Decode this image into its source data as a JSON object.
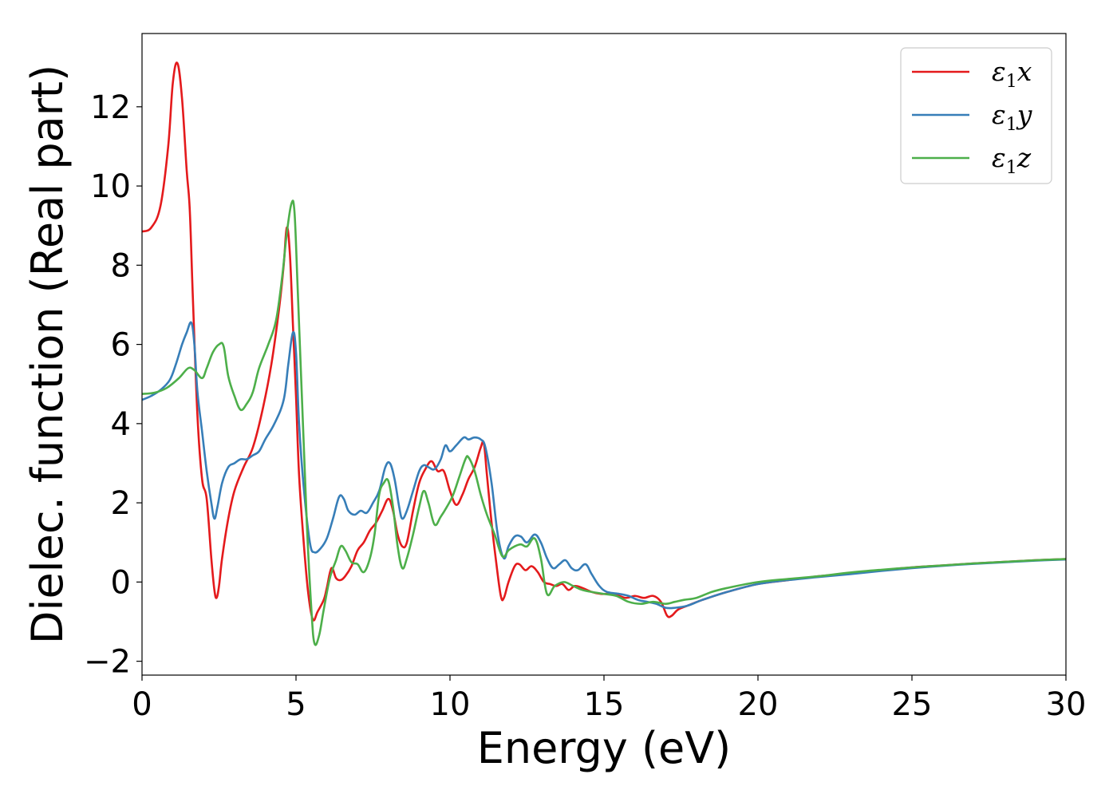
{
  "chart_data": {
    "type": "line",
    "xlabel": "Energy (eV)",
    "ylabel": "Dielec. function (Real part)",
    "xlim": [
      0,
      30
    ],
    "ylim": [
      -2.35,
      13.85
    ],
    "xticks": [
      0,
      5,
      10,
      15,
      20,
      25,
      30
    ],
    "xtick_labels": [
      "0",
      "5",
      "10",
      "15",
      "20",
      "25",
      "30"
    ],
    "yticks": [
      -2,
      0,
      2,
      4,
      6,
      8,
      10,
      12
    ],
    "ytick_labels": [
      "−2",
      "0",
      "2",
      "4",
      "6",
      "8",
      "10",
      "12"
    ],
    "grid": false,
    "legend_position": "top-right",
    "series": [
      {
        "name": "ε₁x",
        "legend": {
          "symbol": "ε",
          "sub": "1",
          "suffix": "x"
        },
        "color": "#e41a1c",
        "points": [
          [
            0,
            8.85
          ],
          [
            0.3,
            8.95
          ],
          [
            0.6,
            9.5
          ],
          [
            0.85,
            11.0
          ],
          [
            1.0,
            12.6
          ],
          [
            1.15,
            13.1
          ],
          [
            1.3,
            12.2
          ],
          [
            1.45,
            10.4
          ],
          [
            1.55,
            9.4
          ],
          [
            1.65,
            7.2
          ],
          [
            1.8,
            4.2
          ],
          [
            1.95,
            2.6
          ],
          [
            2.1,
            2.1
          ],
          [
            2.25,
            0.6
          ],
          [
            2.35,
            -0.2
          ],
          [
            2.42,
            -0.4
          ],
          [
            2.5,
            -0.1
          ],
          [
            2.6,
            0.6
          ],
          [
            2.8,
            1.6
          ],
          [
            3.0,
            2.3
          ],
          [
            3.3,
            2.9
          ],
          [
            3.6,
            3.4
          ],
          [
            3.9,
            4.3
          ],
          [
            4.2,
            5.5
          ],
          [
            4.45,
            6.9
          ],
          [
            4.6,
            8.0
          ],
          [
            4.7,
            8.95
          ],
          [
            4.8,
            8.3
          ],
          [
            4.9,
            6.5
          ],
          [
            5.0,
            4.7
          ],
          [
            5.1,
            2.7
          ],
          [
            5.25,
            1.0
          ],
          [
            5.4,
            -0.3
          ],
          [
            5.55,
            -0.95
          ],
          [
            5.7,
            -0.75
          ],
          [
            5.9,
            -0.45
          ],
          [
            6.0,
            -0.15
          ],
          [
            6.15,
            0.35
          ],
          [
            6.3,
            0.1
          ],
          [
            6.45,
            0.05
          ],
          [
            6.6,
            0.15
          ],
          [
            6.8,
            0.4
          ],
          [
            7.0,
            0.8
          ],
          [
            7.2,
            1.0
          ],
          [
            7.4,
            1.3
          ],
          [
            7.6,
            1.5
          ],
          [
            7.8,
            1.8
          ],
          [
            8.0,
            2.1
          ],
          [
            8.15,
            1.8
          ],
          [
            8.3,
            1.2
          ],
          [
            8.45,
            0.9
          ],
          [
            8.6,
            1.0
          ],
          [
            8.8,
            1.8
          ],
          [
            9.0,
            2.5
          ],
          [
            9.2,
            2.85
          ],
          [
            9.4,
            3.05
          ],
          [
            9.6,
            2.8
          ],
          [
            9.8,
            2.8
          ],
          [
            10.0,
            2.3
          ],
          [
            10.2,
            1.95
          ],
          [
            10.4,
            2.2
          ],
          [
            10.6,
            2.6
          ],
          [
            10.8,
            2.9
          ],
          [
            11.0,
            3.4
          ],
          [
            11.1,
            3.5
          ],
          [
            11.2,
            2.7
          ],
          [
            11.35,
            1.5
          ],
          [
            11.5,
            0.5
          ],
          [
            11.65,
            -0.35
          ],
          [
            11.75,
            -0.4
          ],
          [
            11.9,
            0.0
          ],
          [
            12.1,
            0.4
          ],
          [
            12.25,
            0.45
          ],
          [
            12.45,
            0.3
          ],
          [
            12.65,
            0.4
          ],
          [
            12.85,
            0.25
          ],
          [
            13.05,
            0.0
          ],
          [
            13.25,
            -0.05
          ],
          [
            13.45,
            -0.1
          ],
          [
            13.65,
            -0.05
          ],
          [
            13.85,
            -0.2
          ],
          [
            14.05,
            -0.1
          ],
          [
            14.3,
            -0.15
          ],
          [
            14.6,
            -0.25
          ],
          [
            14.9,
            -0.3
          ],
          [
            15.3,
            -0.3
          ],
          [
            15.7,
            -0.4
          ],
          [
            16.0,
            -0.35
          ],
          [
            16.3,
            -0.4
          ],
          [
            16.6,
            -0.35
          ],
          [
            16.85,
            -0.5
          ],
          [
            17.05,
            -0.85
          ],
          [
            17.2,
            -0.85
          ],
          [
            17.4,
            -0.7
          ],
          [
            17.7,
            -0.6
          ],
          [
            18.2,
            -0.45
          ],
          [
            19.0,
            -0.25
          ],
          [
            20.0,
            -0.05
          ],
          [
            21.0,
            0.05
          ],
          [
            22.0,
            0.15
          ],
          [
            23.0,
            0.22
          ],
          [
            24.0,
            0.3
          ],
          [
            25.0,
            0.37
          ],
          [
            26.0,
            0.42
          ],
          [
            27.0,
            0.47
          ],
          [
            28.0,
            0.51
          ],
          [
            29.0,
            0.55
          ],
          [
            30.0,
            0.58
          ]
        ]
      },
      {
        "name": "ε₁y",
        "legend": {
          "symbol": "ε",
          "sub": "1",
          "suffix": "y"
        },
        "color": "#377eb8",
        "points": [
          [
            0,
            4.6
          ],
          [
            0.3,
            4.7
          ],
          [
            0.6,
            4.85
          ],
          [
            0.9,
            5.1
          ],
          [
            1.1,
            5.5
          ],
          [
            1.3,
            6.0
          ],
          [
            1.45,
            6.3
          ],
          [
            1.6,
            6.55
          ],
          [
            1.7,
            6.0
          ],
          [
            1.8,
            4.8
          ],
          [
            1.95,
            3.8
          ],
          [
            2.1,
            2.8
          ],
          [
            2.25,
            2.0
          ],
          [
            2.35,
            1.6
          ],
          [
            2.45,
            1.9
          ],
          [
            2.6,
            2.5
          ],
          [
            2.8,
            2.9
          ],
          [
            3.0,
            3.0
          ],
          [
            3.2,
            3.1
          ],
          [
            3.4,
            3.1
          ],
          [
            3.6,
            3.2
          ],
          [
            3.8,
            3.3
          ],
          [
            4.0,
            3.6
          ],
          [
            4.3,
            4.0
          ],
          [
            4.6,
            4.6
          ],
          [
            4.75,
            5.5
          ],
          [
            4.9,
            6.3
          ],
          [
            5.0,
            5.8
          ],
          [
            5.1,
            4.0
          ],
          [
            5.25,
            2.4
          ],
          [
            5.45,
            1.0
          ],
          [
            5.6,
            0.75
          ],
          [
            5.8,
            0.85
          ],
          [
            6.0,
            1.1
          ],
          [
            6.2,
            1.6
          ],
          [
            6.4,
            2.15
          ],
          [
            6.55,
            2.1
          ],
          [
            6.7,
            1.8
          ],
          [
            6.9,
            1.7
          ],
          [
            7.1,
            1.8
          ],
          [
            7.3,
            1.75
          ],
          [
            7.5,
            2.0
          ],
          [
            7.7,
            2.3
          ],
          [
            7.9,
            2.9
          ],
          [
            8.05,
            3.0
          ],
          [
            8.2,
            2.6
          ],
          [
            8.35,
            1.9
          ],
          [
            8.45,
            1.6
          ],
          [
            8.6,
            1.8
          ],
          [
            8.8,
            2.3
          ],
          [
            9.0,
            2.8
          ],
          [
            9.15,
            2.95
          ],
          [
            9.3,
            2.9
          ],
          [
            9.5,
            2.85
          ],
          [
            9.7,
            3.1
          ],
          [
            9.85,
            3.45
          ],
          [
            10.0,
            3.3
          ],
          [
            10.2,
            3.45
          ],
          [
            10.45,
            3.65
          ],
          [
            10.6,
            3.6
          ],
          [
            10.8,
            3.65
          ],
          [
            11.0,
            3.6
          ],
          [
            11.15,
            3.4
          ],
          [
            11.35,
            2.5
          ],
          [
            11.55,
            1.2
          ],
          [
            11.75,
            0.6
          ],
          [
            11.9,
            0.9
          ],
          [
            12.1,
            1.15
          ],
          [
            12.3,
            1.15
          ],
          [
            12.5,
            1.0
          ],
          [
            12.75,
            1.2
          ],
          [
            12.95,
            1.0
          ],
          [
            13.15,
            0.6
          ],
          [
            13.35,
            0.35
          ],
          [
            13.55,
            0.45
          ],
          [
            13.75,
            0.55
          ],
          [
            13.95,
            0.35
          ],
          [
            14.15,
            0.3
          ],
          [
            14.4,
            0.45
          ],
          [
            14.6,
            0.2
          ],
          [
            14.85,
            -0.1
          ],
          [
            15.1,
            -0.25
          ],
          [
            15.5,
            -0.3
          ],
          [
            15.8,
            -0.35
          ],
          [
            16.1,
            -0.45
          ],
          [
            16.4,
            -0.5
          ],
          [
            16.7,
            -0.55
          ],
          [
            17.0,
            -0.65
          ],
          [
            17.3,
            -0.65
          ],
          [
            17.7,
            -0.6
          ],
          [
            18.2,
            -0.45
          ],
          [
            19.0,
            -0.25
          ],
          [
            20.0,
            -0.05
          ],
          [
            21.0,
            0.05
          ],
          [
            22.0,
            0.13
          ],
          [
            23.0,
            0.2
          ],
          [
            24.0,
            0.28
          ],
          [
            25.0,
            0.35
          ],
          [
            26.0,
            0.41
          ],
          [
            27.0,
            0.46
          ],
          [
            28.0,
            0.5
          ],
          [
            29.0,
            0.54
          ],
          [
            30.0,
            0.57
          ]
        ]
      },
      {
        "name": "ε₁z",
        "legend": {
          "symbol": "ε",
          "sub": "1",
          "suffix": "z"
        },
        "color": "#4daf4a",
        "points": [
          [
            0,
            4.75
          ],
          [
            0.4,
            4.78
          ],
          [
            0.8,
            4.9
          ],
          [
            1.2,
            5.15
          ],
          [
            1.5,
            5.4
          ],
          [
            1.7,
            5.35
          ],
          [
            1.95,
            5.15
          ],
          [
            2.1,
            5.4
          ],
          [
            2.3,
            5.8
          ],
          [
            2.5,
            6.0
          ],
          [
            2.65,
            5.95
          ],
          [
            2.8,
            5.2
          ],
          [
            3.0,
            4.7
          ],
          [
            3.2,
            4.35
          ],
          [
            3.4,
            4.5
          ],
          [
            3.6,
            4.8
          ],
          [
            3.8,
            5.4
          ],
          [
            4.1,
            6.0
          ],
          [
            4.35,
            6.6
          ],
          [
            4.55,
            7.7
          ],
          [
            4.7,
            8.8
          ],
          [
            4.85,
            9.55
          ],
          [
            4.95,
            9.35
          ],
          [
            5.05,
            7.5
          ],
          [
            5.2,
            4.5
          ],
          [
            5.35,
            1.5
          ],
          [
            5.5,
            -0.7
          ],
          [
            5.6,
            -1.55
          ],
          [
            5.75,
            -1.35
          ],
          [
            5.9,
            -0.7
          ],
          [
            6.1,
            0.1
          ],
          [
            6.3,
            0.55
          ],
          [
            6.45,
            0.9
          ],
          [
            6.6,
            0.8
          ],
          [
            6.8,
            0.5
          ],
          [
            7.0,
            0.45
          ],
          [
            7.2,
            0.25
          ],
          [
            7.4,
            0.6
          ],
          [
            7.55,
            1.2
          ],
          [
            7.7,
            2.2
          ],
          [
            7.85,
            2.5
          ],
          [
            8.0,
            2.55
          ],
          [
            8.15,
            1.9
          ],
          [
            8.3,
            0.9
          ],
          [
            8.45,
            0.35
          ],
          [
            8.6,
            0.6
          ],
          [
            8.8,
            1.2
          ],
          [
            9.0,
            1.9
          ],
          [
            9.15,
            2.3
          ],
          [
            9.3,
            2.0
          ],
          [
            9.5,
            1.45
          ],
          [
            9.7,
            1.65
          ],
          [
            9.9,
            1.9
          ],
          [
            10.1,
            2.2
          ],
          [
            10.3,
            2.65
          ],
          [
            10.5,
            3.1
          ],
          [
            10.6,
            3.15
          ],
          [
            10.8,
            2.8
          ],
          [
            11.0,
            2.2
          ],
          [
            11.2,
            1.7
          ],
          [
            11.45,
            1.2
          ],
          [
            11.7,
            0.65
          ],
          [
            11.9,
            0.8
          ],
          [
            12.1,
            0.9
          ],
          [
            12.3,
            0.95
          ],
          [
            12.5,
            0.9
          ],
          [
            12.75,
            1.1
          ],
          [
            12.95,
            0.6
          ],
          [
            13.15,
            -0.3
          ],
          [
            13.4,
            -0.1
          ],
          [
            13.7,
            0.0
          ],
          [
            14.0,
            -0.1
          ],
          [
            14.3,
            -0.2
          ],
          [
            14.6,
            -0.25
          ],
          [
            15.0,
            -0.3
          ],
          [
            15.4,
            -0.35
          ],
          [
            15.8,
            -0.5
          ],
          [
            16.2,
            -0.55
          ],
          [
            16.6,
            -0.5
          ],
          [
            17.0,
            -0.55
          ],
          [
            17.3,
            -0.5
          ],
          [
            17.6,
            -0.45
          ],
          [
            18.0,
            -0.4
          ],
          [
            18.5,
            -0.25
          ],
          [
            19.0,
            -0.15
          ],
          [
            20.0,
            0.0
          ],
          [
            21.0,
            0.08
          ],
          [
            22.0,
            0.15
          ],
          [
            23.0,
            0.24
          ],
          [
            24.0,
            0.31
          ],
          [
            25.0,
            0.37
          ],
          [
            26.0,
            0.42
          ],
          [
            27.0,
            0.47
          ],
          [
            28.0,
            0.51
          ],
          [
            29.0,
            0.55
          ],
          [
            30.0,
            0.58
          ]
        ]
      }
    ]
  }
}
